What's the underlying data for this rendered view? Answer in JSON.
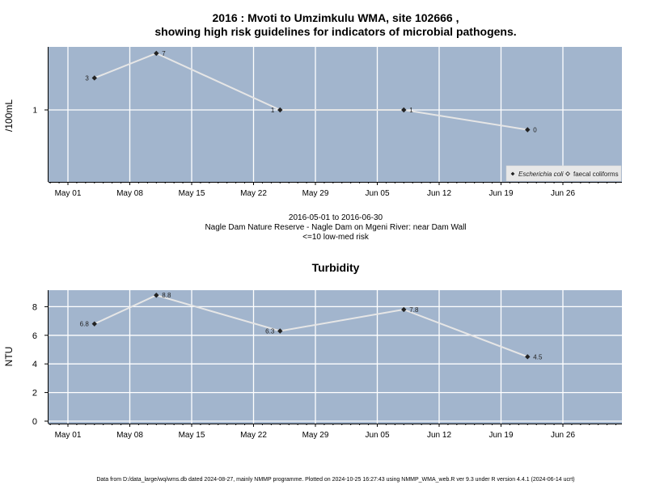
{
  "titles": {
    "line1": "2016 : Mvoti to Umzimkulu WMA, site 102666 ,",
    "line2": "showing high risk guidelines for indicators of microbial pathogens."
  },
  "middle": {
    "date_range": "2016-05-01 to 2016-06-30",
    "location": "Nagle Dam Nature Reserve - Nagle Dam on Mgeni River: near Dam Wall",
    "risk_note": "<=10 low-med risk"
  },
  "footer": "Data from D:/data_large/wq/wms.db dated 2024-08-27, mainly NMMP programme. Plotted on 2024-10-25 16:27:43 using NMMP_WMA_web.R ver 9.3 under R version 4.4.1 (2024-06-14 ucrt)",
  "colors": {
    "panel_bg": "#a2b5cd",
    "grid": "#ffffff",
    "line": "#e6e6e6",
    "point": "#222222"
  },
  "chart_data": [
    {
      "type": "line",
      "title": "",
      "xlabel": "",
      "ylabel": "/100mL",
      "x_ticks": [
        "May 01",
        "May 08",
        "May 15",
        "May 22",
        "May 29",
        "Jun 05",
        "Jun 12",
        "Jun 19",
        "Jun 26"
      ],
      "y_ticks": [
        "1"
      ],
      "y_scale": "log",
      "grid": true,
      "legend_position": "bottom-right",
      "legend": [
        {
          "label": "Escherichia coli",
          "marker": "filled-diamond"
        },
        {
          "label": "faecal coliforms",
          "marker": "open-diamond"
        }
      ],
      "series": [
        {
          "name": "Escherichia coli",
          "x": [
            "2016-05-04",
            "2016-05-11",
            "2016-05-25",
            "2016-06-08",
            "2016-06-22"
          ],
          "y": [
            3,
            7,
            1,
            1,
            0
          ],
          "labels": [
            "3",
            "7",
            "1",
            "1",
            "0"
          ]
        }
      ]
    },
    {
      "type": "line",
      "title": "Turbidity",
      "xlabel": "",
      "ylabel": "NTU",
      "x_ticks": [
        "May 01",
        "May 08",
        "May 15",
        "May 22",
        "May 29",
        "Jun 05",
        "Jun 12",
        "Jun 19",
        "Jun 26"
      ],
      "y_ticks": [
        "0",
        "2",
        "4",
        "6",
        "8"
      ],
      "ylim": [
        -0.35,
        9.1
      ],
      "grid": true,
      "series": [
        {
          "x": [
            "2016-05-04",
            "2016-05-11",
            "2016-05-25",
            "2016-06-08",
            "2016-06-22"
          ],
          "y": [
            6.8,
            8.8,
            6.3,
            7.8,
            4.5
          ],
          "labels": [
            "6.8",
            "8.8",
            "6.3",
            "7.8",
            "4.5"
          ]
        }
      ]
    }
  ]
}
